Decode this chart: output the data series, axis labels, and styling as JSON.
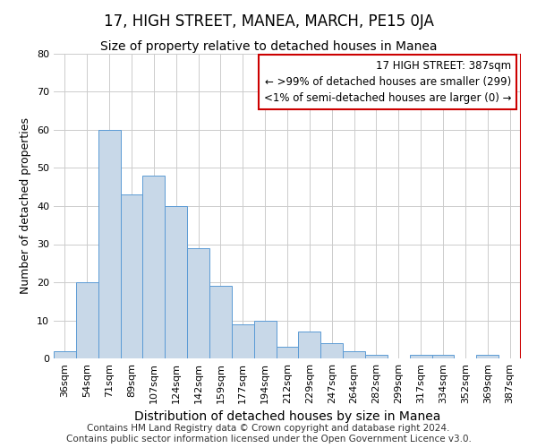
{
  "title": "17, HIGH STREET, MANEA, MARCH, PE15 0JA",
  "subtitle": "Size of property relative to detached houses in Manea",
  "xlabel": "Distribution of detached houses by size in Manea",
  "ylabel": "Number of detached properties",
  "categories": [
    "36sqm",
    "54sqm",
    "71sqm",
    "89sqm",
    "107sqm",
    "124sqm",
    "142sqm",
    "159sqm",
    "177sqm",
    "194sqm",
    "212sqm",
    "229sqm",
    "247sqm",
    "264sqm",
    "282sqm",
    "299sqm",
    "317sqm",
    "334sqm",
    "352sqm",
    "369sqm",
    "387sqm"
  ],
  "values": [
    2,
    20,
    60,
    43,
    48,
    40,
    29,
    19,
    9,
    10,
    3,
    7,
    4,
    2,
    1,
    0,
    1,
    1,
    0,
    1,
    0
  ],
  "bar_color": "#c8d8e8",
  "bar_edge_color": "#5b9bd5",
  "annotation_box_color": "#ffffff",
  "annotation_box_edge": "#cc0000",
  "annotation_title": "17 HIGH STREET: 387sqm",
  "annotation_line1": "← >99% of detached houses are smaller (299)",
  "annotation_line2": "<1% of semi-detached houses are larger (0) →",
  "vertical_line_color": "#cc0000",
  "ylim": [
    0,
    80
  ],
  "yticks": [
    0,
    10,
    20,
    30,
    40,
    50,
    60,
    70,
    80
  ],
  "footer": "Contains HM Land Registry data © Crown copyright and database right 2024.\nContains public sector information licensed under the Open Government Licence v3.0.",
  "title_fontsize": 12,
  "subtitle_fontsize": 10,
  "xlabel_fontsize": 10,
  "ylabel_fontsize": 9,
  "tick_fontsize": 8,
  "annotation_fontsize": 8.5,
  "footer_fontsize": 7.5
}
